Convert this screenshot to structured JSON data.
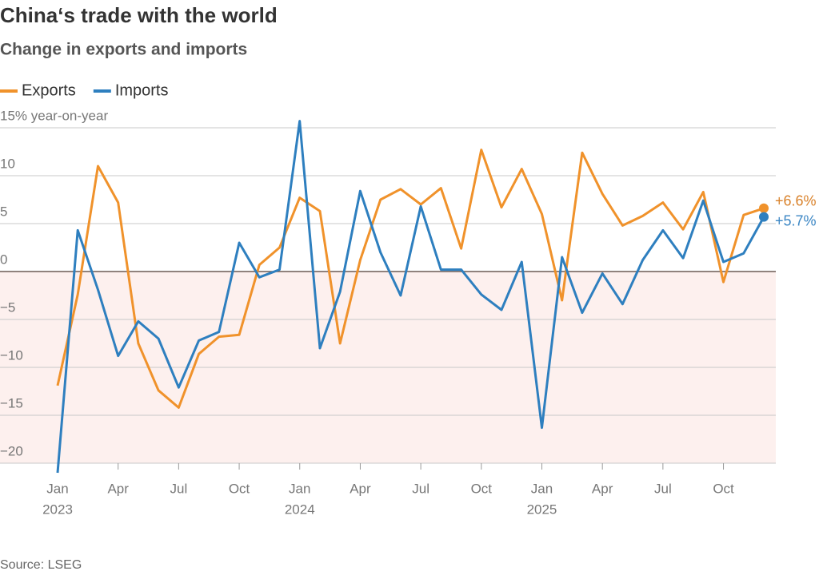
{
  "chart_data": {
    "type": "line",
    "title": "China‘s trade with the world",
    "subtitle": "Change in exports and imports",
    "source": "Source: LSEG",
    "x": [
      "2023-01",
      "2023-02",
      "2023-03",
      "2023-04",
      "2023-05",
      "2023-06",
      "2023-07",
      "2023-08",
      "2023-09",
      "2023-10",
      "2023-11",
      "2023-12",
      "2024-01",
      "2024-02",
      "2024-03",
      "2024-04",
      "2024-05",
      "2024-06",
      "2024-07",
      "2024-08",
      "2024-09",
      "2024-10",
      "2024-11",
      "2024-12",
      "2025-01",
      "2025-02",
      "2025-03",
      "2025-04",
      "2025-05",
      "2025-06",
      "2025-07",
      "2025-08",
      "2025-09",
      "2025-10",
      "2025-11",
      "2025-12"
    ],
    "xlim": [
      "2023-01",
      "2025-12"
    ],
    "xticks": [
      {
        "value": "2023-01",
        "label": "Jan",
        "year": "2023"
      },
      {
        "value": "2023-04",
        "label": "Apr"
      },
      {
        "value": "2023-07",
        "label": "Jul"
      },
      {
        "value": "2023-10",
        "label": "Oct"
      },
      {
        "value": "2024-01",
        "label": "Jan",
        "year": "2024"
      },
      {
        "value": "2024-04",
        "label": "Apr"
      },
      {
        "value": "2024-07",
        "label": "Jul"
      },
      {
        "value": "2024-10",
        "label": "Oct"
      },
      {
        "value": "2025-01",
        "label": "Jan",
        "year": "2025"
      },
      {
        "value": "2025-04",
        "label": "Apr"
      },
      {
        "value": "2025-07",
        "label": "Jul"
      },
      {
        "value": "2025-10",
        "label": "Oct"
      }
    ],
    "ylim": [
      -21,
      16
    ],
    "yticks": [
      {
        "value": -20,
        "label": "−20"
      },
      {
        "value": -15,
        "label": "−15"
      },
      {
        "value": -10,
        "label": "−10"
      },
      {
        "value": -5,
        "label": "−5"
      },
      0,
      5,
      10,
      {
        "value": 15,
        "label": "15% year-on-year"
      }
    ],
    "grid": true,
    "negative_shade": "#fdf0ee",
    "zero_line_color": "#6b5a55",
    "series": [
      {
        "name": "Exports",
        "color": "#f0922b",
        "label_color": "#d9822b",
        "values": [
          -11.9,
          -2.4,
          11.0,
          7.2,
          -7.5,
          -12.4,
          -14.2,
          -8.6,
          -6.8,
          -6.6,
          0.7,
          2.5,
          7.7,
          6.3,
          -7.5,
          1.2,
          7.5,
          8.6,
          7.0,
          8.7,
          2.4,
          12.7,
          6.7,
          10.7,
          6.0,
          -3.0,
          12.4,
          8.1,
          4.8,
          5.8,
          7.2,
          4.4,
          8.3,
          -1.1,
          5.9,
          6.6
        ],
        "value_labels": [
          null,
          null,
          null,
          null,
          null,
          null,
          null,
          null,
          null,
          null,
          null,
          null,
          null,
          null,
          null,
          null,
          null,
          null,
          null,
          null,
          null,
          null,
          null,
          null,
          null,
          null,
          null,
          null,
          null,
          null,
          null,
          null,
          null,
          null,
          null,
          "+6.6%"
        ]
      },
      {
        "name": "Imports",
        "color": "#2e7fbf",
        "label_color": "#3b86c4",
        "values": [
          -21.0,
          4.3,
          -1.9,
          -8.8,
          -5.2,
          -7.0,
          -12.1,
          -7.2,
          -6.3,
          3.0,
          -0.6,
          0.2,
          15.7,
          -8.0,
          -2.1,
          8.4,
          2.0,
          -2.5,
          6.8,
          0.2,
          0.2,
          -2.4,
          -4.0,
          1.0,
          -16.3,
          1.5,
          -4.3,
          -0.2,
          -3.4,
          1.2,
          4.3,
          1.4,
          7.4,
          1.0,
          1.9,
          5.7
        ],
        "value_labels": [
          null,
          null,
          null,
          null,
          null,
          null,
          null,
          null,
          null,
          null,
          null,
          null,
          null,
          null,
          null,
          null,
          null,
          null,
          null,
          null,
          null,
          null,
          null,
          null,
          null,
          null,
          null,
          null,
          null,
          null,
          null,
          null,
          null,
          null,
          null,
          "+5.7%"
        ]
      }
    ]
  }
}
